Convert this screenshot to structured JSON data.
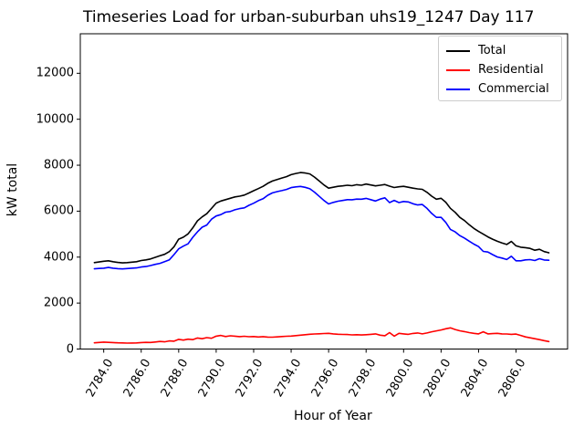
{
  "window": {
    "background": "#ffffff"
  },
  "chart_data": {
    "type": "line",
    "title": "Timeseries Load for urban-suburban uhs19_1247  Day 117",
    "xlabel": "Hour of Year",
    "ylabel": "kW total",
    "xlim": [
      2782.75,
      2808.75
    ],
    "ylim": [
      0,
      13720
    ],
    "grid": false,
    "legend_position": "upper right",
    "xticks": {
      "values": [
        2784,
        2786,
        2788,
        2790,
        2792,
        2794,
        2796,
        2798,
        2800,
        2802,
        2804,
        2806
      ],
      "labels": [
        "2784.0",
        "2786.0",
        "2788.0",
        "2790.0",
        "2792.0",
        "2794.0",
        "2796.0",
        "2798.0",
        "2800.0",
        "2802.0",
        "2804.0",
        "2806.0"
      ]
    },
    "yticks": {
      "values": [
        0,
        2000,
        4000,
        6000,
        8000,
        10000,
        12000
      ],
      "labels": [
        "0",
        "2000",
        "4000",
        "6000",
        "8000",
        "10000",
        "12000"
      ]
    },
    "x_start": 2783.5,
    "x_step": 0.25,
    "n_points": 98,
    "series": [
      {
        "name": "Total",
        "color": "#000000",
        "values": [
          3760,
          3790,
          3820,
          3840,
          3800,
          3770,
          3750,
          3760,
          3780,
          3800,
          3850,
          3880,
          3920,
          3990,
          4060,
          4120,
          4240,
          4450,
          4780,
          4870,
          5010,
          5270,
          5580,
          5750,
          5890,
          6120,
          6350,
          6440,
          6500,
          6560,
          6620,
          6650,
          6700,
          6790,
          6890,
          6980,
          7080,
          7210,
          7310,
          7380,
          7440,
          7500,
          7590,
          7640,
          7680,
          7660,
          7620,
          7480,
          7310,
          7140,
          7000,
          7040,
          7080,
          7100,
          7130,
          7110,
          7150,
          7130,
          7180,
          7140,
          7100,
          7130,
          7160,
          7090,
          7030,
          7060,
          7080,
          7040,
          7000,
          6970,
          6950,
          6820,
          6650,
          6520,
          6560,
          6390,
          6125,
          5950,
          5730,
          5590,
          5410,
          5250,
          5120,
          5000,
          4880,
          4780,
          4690,
          4620,
          4550,
          4680,
          4490,
          4430,
          4410,
          4380,
          4300,
          4340,
          4240,
          4190
        ]
      },
      {
        "name": "Residential",
        "color": "#ff0000",
        "values": [
          270,
          285,
          300,
          290,
          280,
          270,
          265,
          258,
          262,
          268,
          280,
          290,
          285,
          305,
          330,
          315,
          355,
          340,
          420,
          390,
          430,
          410,
          480,
          450,
          495,
          470,
          560,
          590,
          545,
          575,
          560,
          540,
          555,
          535,
          545,
          525,
          540,
          520,
          515,
          530,
          545,
          555,
          565,
          585,
          605,
          625,
          645,
          655,
          665,
          675,
          685,
          660,
          645,
          635,
          630,
          615,
          625,
          610,
          625,
          640,
          660,
          605,
          580,
          715,
          560,
          685,
          660,
          640,
          680,
          700,
          660,
          700,
          750,
          790,
          830,
          880,
          920,
          850,
          795,
          760,
          715,
          685,
          660,
          750,
          660,
          670,
          685,
          660,
          655,
          640,
          650,
          590,
          530,
          490,
          450,
          410,
          365,
          325
        ]
      },
      {
        "name": "Commercial",
        "color": "#0000ff",
        "values": [
          3490,
          3505,
          3520,
          3550,
          3520,
          3500,
          3485,
          3502,
          3518,
          3532,
          3570,
          3590,
          3635,
          3685,
          3730,
          3805,
          3885,
          4110,
          4360,
          4480,
          4580,
          4860,
          5100,
          5300,
          5395,
          5650,
          5790,
          5850,
          5955,
          5985,
          6060,
          6110,
          6145,
          6255,
          6345,
          6455,
          6540,
          6690,
          6795,
          6850,
          6895,
          6945,
          7025,
          7055,
          7075,
          7035,
          6975,
          6825,
          6645,
          6465,
          6315,
          6380,
          6435,
          6465,
          6500,
          6495,
          6525,
          6520,
          6555,
          6500,
          6440,
          6525,
          6580,
          6375,
          6470,
          6375,
          6420,
          6400,
          6320,
          6270,
          6290,
          6120,
          5900,
          5730,
          5730,
          5510,
          5205,
          5100,
          4935,
          4830,
          4695,
          4565,
          4460,
          4250,
          4220,
          4110,
          4005,
          3960,
          3895,
          4040,
          3840,
          3840,
          3880,
          3890,
          3850,
          3930,
          3875,
          3865
        ]
      }
    ]
  }
}
